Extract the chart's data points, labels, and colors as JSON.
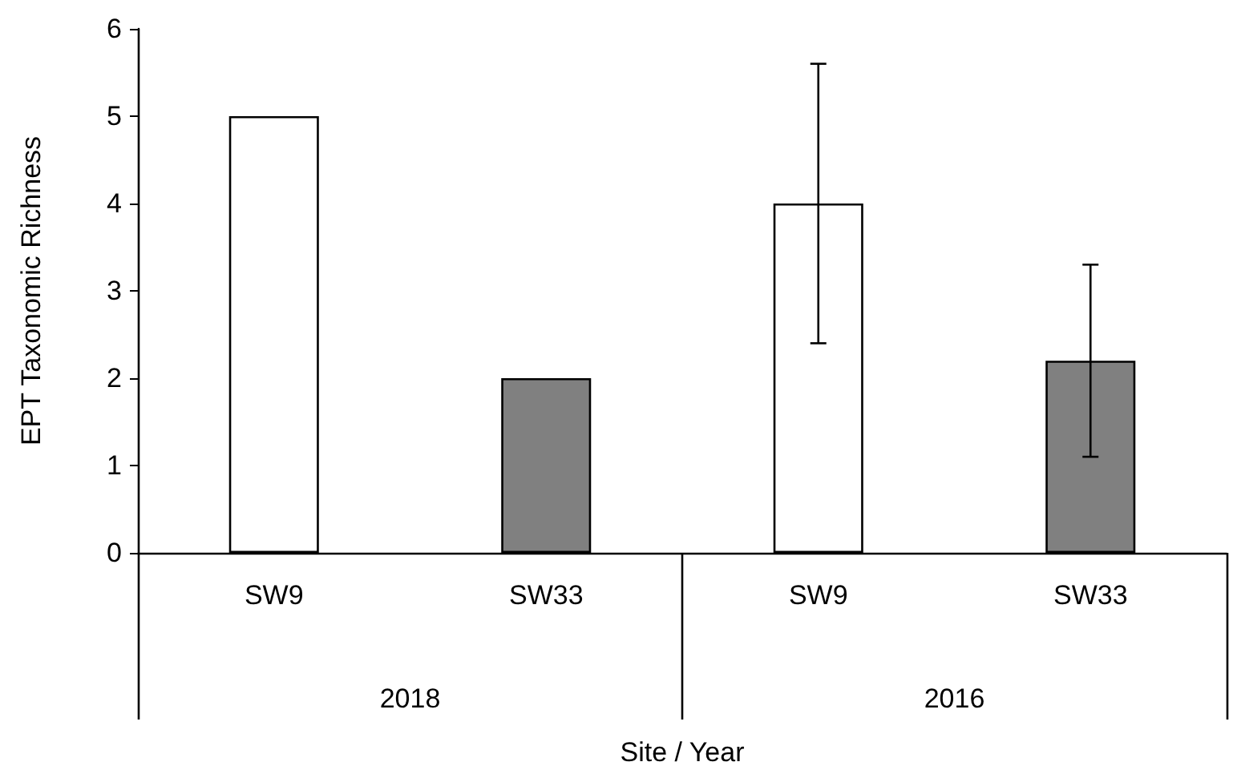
{
  "chart_data": {
    "type": "bar",
    "xlabel": "Site / Year",
    "ylabel": "EPT Taxonomic Richness",
    "categories": [
      "SW9",
      "SW33",
      "SW9",
      "SW33"
    ],
    "values": [
      5,
      2,
      4,
      2.2
    ],
    "colors": [
      "#ffffff",
      "#808080",
      "#ffffff",
      "#808080"
    ],
    "errors": [
      null,
      null,
      1.6,
      1.1
    ],
    "ylim": [
      0,
      6
    ],
    "yticks": [
      0,
      1,
      2,
      3,
      4,
      5,
      6
    ],
    "grid": false,
    "annotations": [
      "2018",
      "2016"
    ]
  }
}
